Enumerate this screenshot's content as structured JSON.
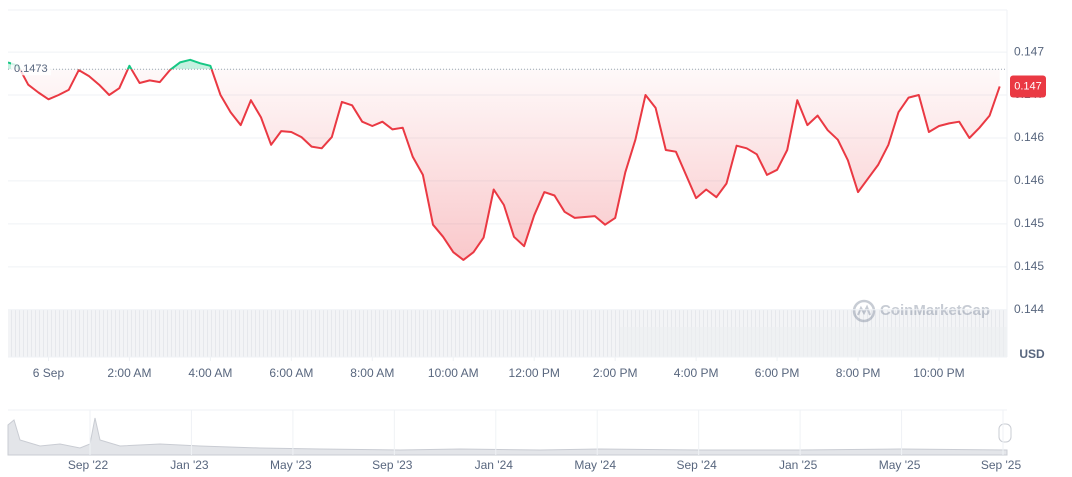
{
  "chart_data": {
    "type": "line",
    "x": [
      -1,
      -0.75,
      -0.5,
      -0.25,
      0,
      0.25,
      0.5,
      0.75,
      1,
      1.25,
      1.5,
      1.75,
      2,
      2.25,
      2.5,
      2.75,
      3,
      3.25,
      3.5,
      3.75,
      4,
      4.25,
      4.5,
      4.75,
      5,
      5.25,
      5.5,
      5.75,
      6,
      6.25,
      6.5,
      6.75,
      7,
      7.25,
      7.5,
      7.75,
      8,
      8.25,
      8.5,
      8.75,
      9,
      9.25,
      9.5,
      9.75,
      10,
      10.25,
      10.5,
      10.75,
      11,
      11.25,
      11.5,
      11.75,
      12,
      12.25,
      12.5,
      12.75,
      13,
      13.25,
      13.5,
      13.75,
      14,
      14.25,
      14.5,
      14.75,
      15,
      15.25,
      15.5,
      15.75,
      16,
      16.25,
      16.5,
      16.75,
      17,
      17.25,
      17.5,
      17.75,
      18,
      18.25,
      18.5,
      18.75,
      19,
      19.25,
      19.5,
      19.75,
      20,
      20.25,
      20.5,
      20.75,
      21,
      21.25,
      21.5,
      21.75,
      22,
      22.25,
      22.5,
      22.75,
      23,
      23.25,
      23.5
    ],
    "values": [
      0.14738,
      0.14734,
      0.14712,
      0.14703,
      0.14695,
      0.147,
      0.14706,
      0.14729,
      0.14722,
      0.14712,
      0.147,
      0.14708,
      0.14734,
      0.14714,
      0.14717,
      0.14715,
      0.14729,
      0.14738,
      0.14741,
      0.14737,
      0.14734,
      0.147,
      0.1468,
      0.14665,
      0.14694,
      0.14674,
      0.14642,
      0.14658,
      0.14657,
      0.14651,
      0.1464,
      0.14638,
      0.14651,
      0.14692,
      0.14688,
      0.14669,
      0.14664,
      0.14669,
      0.1466,
      0.14662,
      0.14628,
      0.14607,
      0.14549,
      0.14535,
      0.14517,
      0.14508,
      0.14517,
      0.14534,
      0.1459,
      0.14572,
      0.14535,
      0.14524,
      0.1456,
      0.14587,
      0.14583,
      0.14564,
      0.14557,
      0.14558,
      0.14559,
      0.14549,
      0.14557,
      0.1461,
      0.14648,
      0.147,
      0.14685,
      0.14636,
      0.14634,
      0.14607,
      0.1458,
      0.1459,
      0.14581,
      0.14597,
      0.14641,
      0.14638,
      0.14631,
      0.14607,
      0.14613,
      0.14636,
      0.14694,
      0.14665,
      0.14676,
      0.14659,
      0.14648,
      0.14624,
      0.14587,
      0.14603,
      0.14619,
      0.14642,
      0.1468,
      0.14697,
      0.147,
      0.14657,
      0.14664,
      0.14667,
      0.14669,
      0.1465,
      0.14662,
      0.14676,
      0.1471
    ],
    "color_up": "#16c784",
    "color_down": "#ea3943",
    "reference": {
      "value": 0.1473,
      "label": "0.1473"
    },
    "current_price": {
      "value": 0.1471,
      "label": "0.147"
    },
    "currency": "USD",
    "watermark": "CoinMarketCap",
    "xlim": [
      -1,
      23.68
    ],
    "xticks": [
      {
        "value": 0,
        "label": "6 Sep"
      },
      {
        "value": 2,
        "label": "2:00 AM"
      },
      {
        "value": 4,
        "label": "4:00 AM"
      },
      {
        "value": 6,
        "label": "6:00 AM"
      },
      {
        "value": 8,
        "label": "8:00 AM"
      },
      {
        "value": 10,
        "label": "10:00 AM"
      },
      {
        "value": 12,
        "label": "12:00 PM"
      },
      {
        "value": 14,
        "label": "2:00 PM"
      },
      {
        "value": 16,
        "label": "4:00 PM"
      },
      {
        "value": 18,
        "label": "6:00 PM"
      },
      {
        "value": 20,
        "label": "8:00 PM"
      },
      {
        "value": 22,
        "label": "10:00 PM"
      }
    ],
    "ylim": [
      0.14395,
      0.14799
    ],
    "yticks": [
      {
        "value": 0.1475,
        "label": "0.147"
      },
      {
        "value": 0.147,
        "label": "0.147"
      },
      {
        "value": 0.1465,
        "label": "0.146"
      },
      {
        "value": 0.146,
        "label": "0.146"
      },
      {
        "value": 0.1455,
        "label": "0.145"
      },
      {
        "value": 0.145,
        "label": "0.145"
      },
      {
        "value": 0.1445,
        "label": "0.144"
      }
    ],
    "grid": true,
    "navigator": {
      "labels": [
        "Sep '22",
        "Jan '23",
        "May '23",
        "Sep '23",
        "Jan '24",
        "May '24",
        "Sep '24",
        "Jan '25",
        "May '25",
        "Sep '25"
      ]
    }
  }
}
